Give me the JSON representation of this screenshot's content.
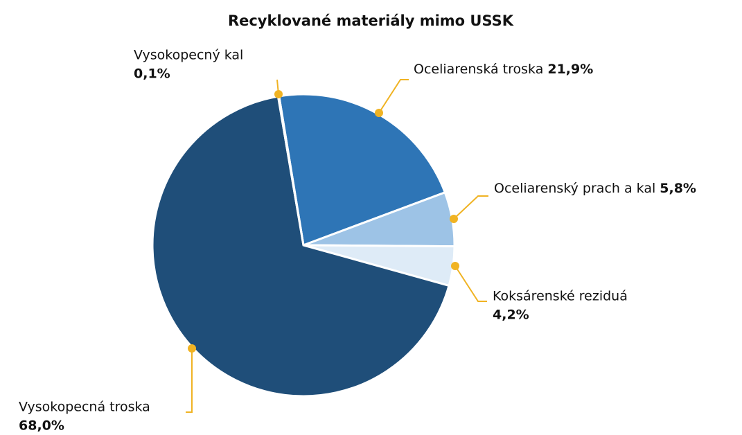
{
  "chart_data": {
    "type": "pie",
    "title": "Recyklované materiály mimo USSK",
    "categories": [
      "Oceliarenská troska",
      "Oceliarenský prach a kal",
      "Koksárenské reziduá",
      "Vysokopecná troska",
      "Vysokopecný kal"
    ],
    "values": [
      21.9,
      5.8,
      4.2,
      68.0,
      0.1
    ],
    "value_labels": [
      "21,9%",
      "5,8%",
      "4,2%",
      "68,0%",
      "0,1%"
    ],
    "colors": [
      "#2e75b6",
      "#9dc3e6",
      "#deebf7",
      "#1f4e79",
      "#1f4e79"
    ]
  }
}
